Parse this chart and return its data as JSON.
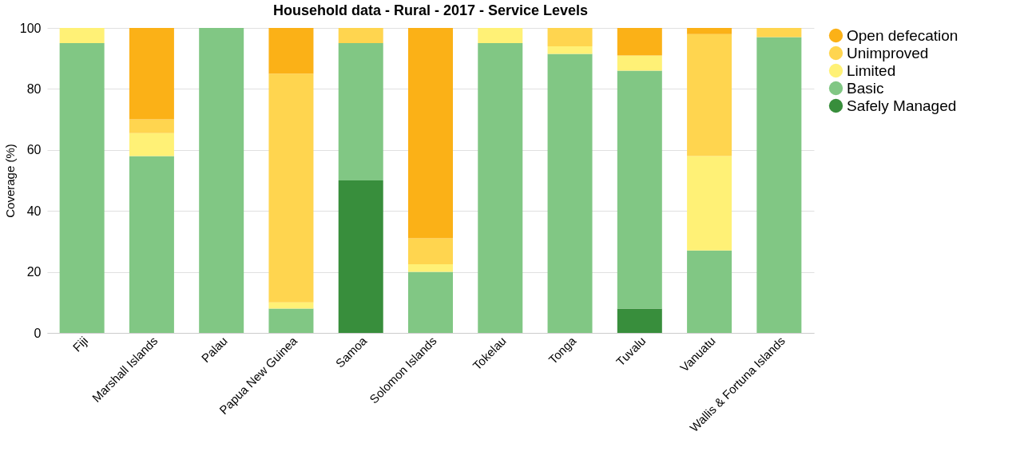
{
  "chart_data": {
    "type": "bar",
    "title": "Household data - Rural - 2017 - Service Levels",
    "ylabel": "Coverage (%)",
    "categories": [
      "Fiji",
      "Marshall Islands",
      "Palau",
      "Papua New Guinea",
      "Samoa",
      "Solomon Islands",
      "Tokelau",
      "Tonga",
      "Tuvalu",
      "Vanuatu",
      "Wallis & Fortuna Islands"
    ],
    "stacked": true,
    "ylim": [
      0,
      100
    ],
    "yticks": [
      0,
      20,
      40,
      60,
      80,
      100
    ],
    "grid": "y",
    "legend": "top right",
    "series": [
      {
        "name": "Safely Managed",
        "color": "#388e3c",
        "values": [
          0,
          0,
          0,
          0,
          50,
          0,
          0,
          0,
          8,
          0,
          0
        ]
      },
      {
        "name": "Basic",
        "color": "#81c784",
        "values": [
          95,
          58,
          100,
          8,
          45,
          20,
          95,
          91.5,
          78,
          27,
          97
        ]
      },
      {
        "name": "Limited",
        "color": "#fff176",
        "values": [
          5,
          7.5,
          0,
          2,
          0,
          2.5,
          5,
          2.5,
          5,
          31,
          0
        ]
      },
      {
        "name": "Unimproved",
        "color": "#ffd54f",
        "values": [
          0,
          4.5,
          0,
          75,
          5,
          8.5,
          0,
          6,
          0,
          40,
          3
        ]
      },
      {
        "name": "Open defecation",
        "color": "#fbb117",
        "values": [
          0,
          30,
          0,
          15,
          0,
          69,
          0,
          0,
          9,
          2,
          0
        ]
      }
    ]
  }
}
